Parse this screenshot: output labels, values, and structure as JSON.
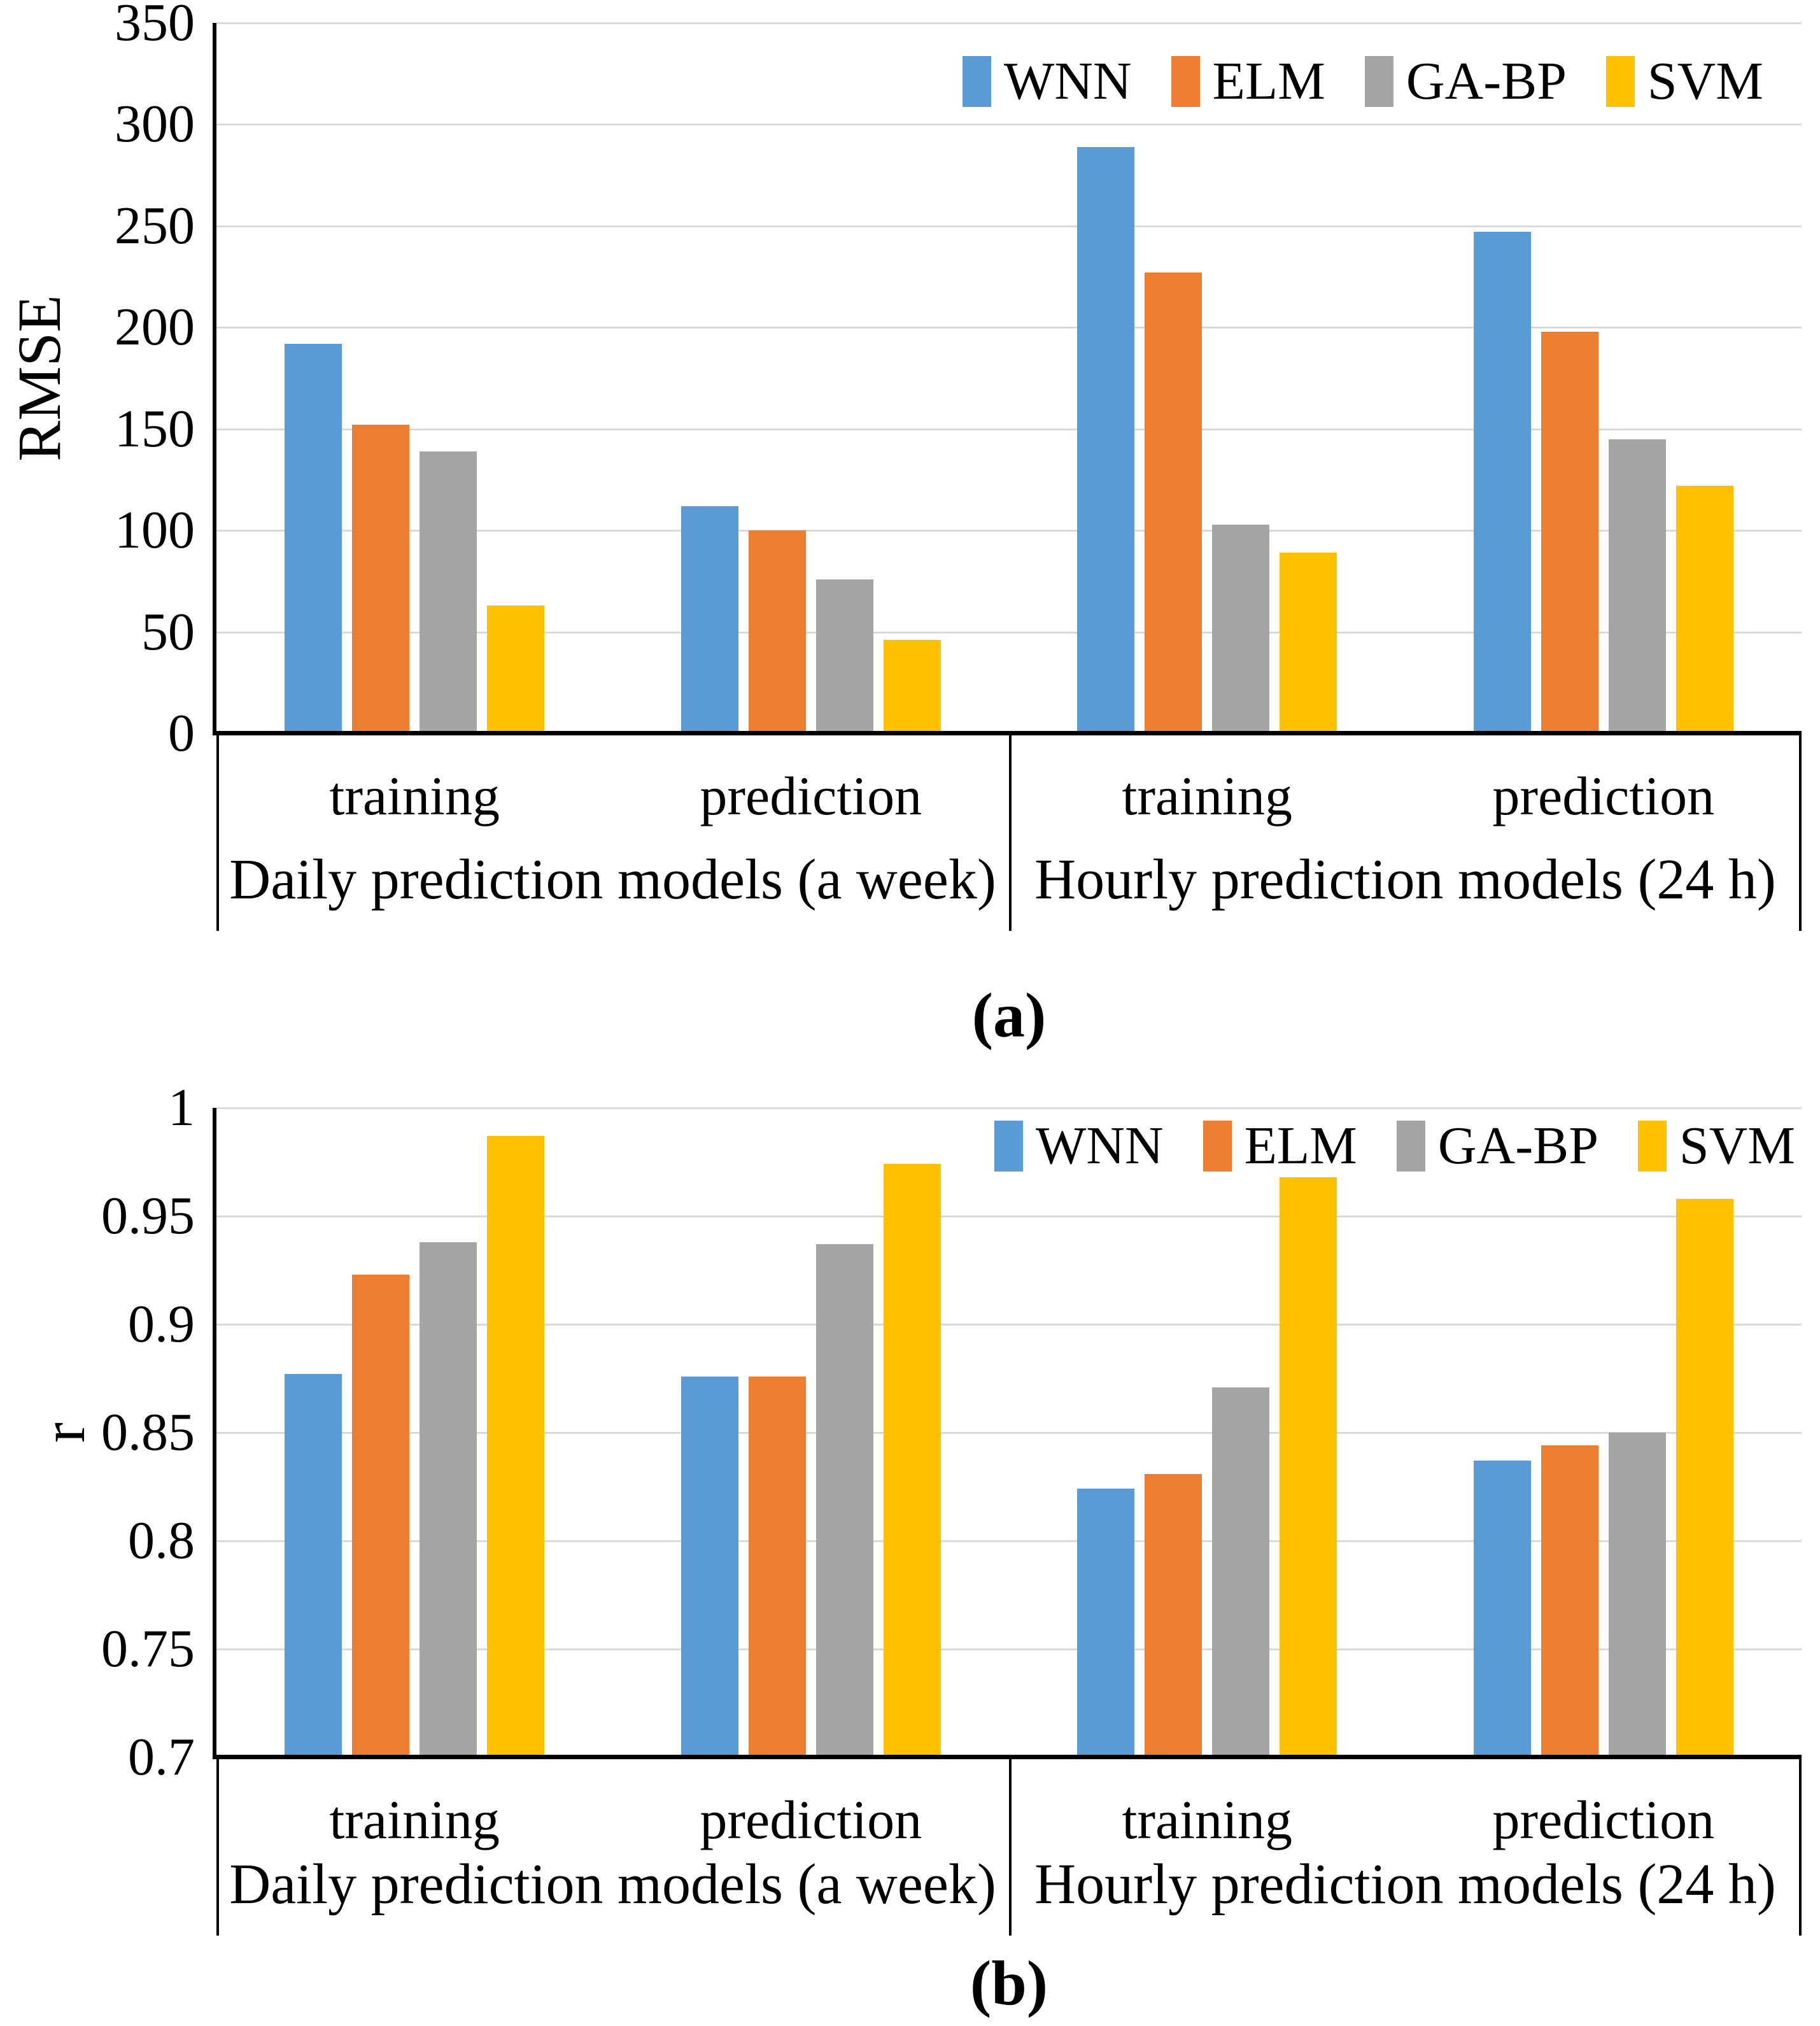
{
  "series_colors": {
    "WNN": "#5B9BD5",
    "ELM": "#ED7D31",
    "GA-BP": "#A5A5A5",
    "SVM": "#FFC000"
  },
  "gridline_color": "#d9d9d9",
  "axis_color": "#000000",
  "chart_data": [
    {
      "id": "a",
      "type": "bar",
      "caption": "(a)",
      "ylabel": "RMSE",
      "ylim": [
        0,
        350
      ],
      "yticks": [
        350,
        300,
        250,
        200,
        150,
        100,
        50,
        0
      ],
      "grid": true,
      "legend_position": "top-right",
      "legend": [
        "WNN",
        "ELM",
        "GA-BP",
        "SVM"
      ],
      "series": [
        {
          "name": "WNN",
          "color": "#5B9BD5"
        },
        {
          "name": "ELM",
          "color": "#ED7D31"
        },
        {
          "name": "GA-BP",
          "color": "#A5A5A5"
        },
        {
          "name": "SVM",
          "color": "#FFC000"
        }
      ],
      "groups": [
        {
          "category": "training",
          "values": [
            192,
            152,
            139,
            63
          ]
        },
        {
          "category": "prediction",
          "values": [
            112,
            100,
            76,
            46
          ]
        },
        {
          "category": "training",
          "values": [
            289,
            227,
            103,
            89
          ]
        },
        {
          "category": "prediction",
          "values": [
            247,
            198,
            145,
            122
          ]
        }
      ],
      "group_labels": [
        "Daily prediction models (a week)",
        "Hourly prediction models (24 h)"
      ]
    },
    {
      "id": "b",
      "type": "bar",
      "caption": "(b)",
      "ylabel": "r",
      "ylim": [
        0.7,
        1
      ],
      "yticks": [
        1,
        0.95,
        0.9,
        0.85,
        0.8,
        0.75,
        0.7
      ],
      "grid": true,
      "legend_position": "top-right",
      "legend": [
        "WNN",
        "ELM",
        "GA-BP",
        "SVM"
      ],
      "series": [
        {
          "name": "WNN",
          "color": "#5B9BD5"
        },
        {
          "name": "ELM",
          "color": "#ED7D31"
        },
        {
          "name": "GA-BP",
          "color": "#A5A5A5"
        },
        {
          "name": "SVM",
          "color": "#FFC000"
        }
      ],
      "groups": [
        {
          "category": "training",
          "values": [
            0.877,
            0.923,
            0.938,
            0.987
          ]
        },
        {
          "category": "prediction",
          "values": [
            0.876,
            0.876,
            0.937,
            0.974
          ]
        },
        {
          "category": "training",
          "values": [
            0.824,
            0.831,
            0.871,
            0.968
          ]
        },
        {
          "category": "prediction",
          "values": [
            0.837,
            0.844,
            0.85,
            0.958
          ]
        }
      ],
      "group_labels": [
        "Daily prediction models (a week)",
        "Hourly prediction models (24 h)"
      ]
    }
  ]
}
